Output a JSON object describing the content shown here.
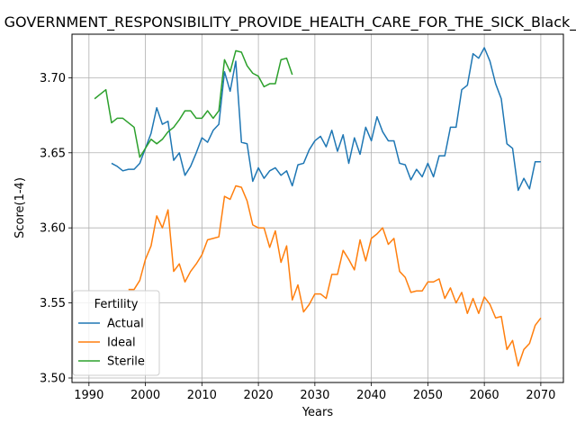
{
  "chart_data": {
    "type": "line",
    "title": "GOVERNMENT_RESPONSIBILITY_PROVIDE_HEALTH_CARE_FOR_THE_SICK_Black_Fertility",
    "xlabel": "Years",
    "ylabel": "Score(1-4)",
    "xlim": [
      1987,
      2074
    ],
    "ylim": [
      3.497,
      3.729
    ],
    "xticks": [
      1990,
      2000,
      2010,
      2020,
      2030,
      2040,
      2050,
      2060,
      2070
    ],
    "yticks": [
      3.5,
      3.55,
      3.6,
      3.65,
      3.7
    ],
    "ytick_labels": [
      "3.50",
      "3.55",
      "3.60",
      "3.65",
      "3.70"
    ],
    "grid": true,
    "legend": {
      "title": "Fertility",
      "position": "lower-left"
    },
    "series": [
      {
        "name": "Actual",
        "color": "#1f77b4",
        "x": [
          1994,
          1995,
          1996,
          1997,
          1998,
          1999,
          2000,
          2001,
          2002,
          2003,
          2004,
          2005,
          2006,
          2007,
          2008,
          2009,
          2010,
          2011,
          2012,
          2013,
          2014,
          2015,
          2016,
          2017,
          2018,
          2019,
          2020,
          2021,
          2022,
          2023,
          2024,
          2025,
          2026,
          2027,
          2028,
          2029,
          2030,
          2031,
          2032,
          2033,
          2034,
          2035,
          2036,
          2037,
          2038,
          2039,
          2040,
          2041,
          2042,
          2043,
          2044,
          2045,
          2046,
          2047,
          2048,
          2049,
          2050,
          2051,
          2052,
          2053,
          2054,
          2055,
          2056,
          2057,
          2058,
          2059,
          2060,
          2061,
          2062,
          2063,
          2064,
          2065,
          2066,
          2067,
          2068,
          2069,
          2070
        ],
        "values": [
          3.643,
          3.641,
          3.638,
          3.639,
          3.639,
          3.643,
          3.653,
          3.663,
          3.68,
          3.669,
          3.671,
          3.645,
          3.65,
          3.635,
          3.641,
          3.65,
          3.66,
          3.657,
          3.665,
          3.669,
          3.704,
          3.691,
          3.711,
          3.657,
          3.656,
          3.631,
          3.64,
          3.633,
          3.638,
          3.64,
          3.635,
          3.638,
          3.628,
          3.642,
          3.643,
          3.652,
          3.658,
          3.661,
          3.654,
          3.665,
          3.651,
          3.662,
          3.643,
          3.66,
          3.649,
          3.667,
          3.658,
          3.674,
          3.664,
          3.658,
          3.658,
          3.643,
          3.642,
          3.632,
          3.639,
          3.634,
          3.643,
          3.634,
          3.648,
          3.648,
          3.667,
          3.667,
          3.692,
          3.695,
          3.716,
          3.713,
          3.72,
          3.711,
          3.696,
          3.686,
          3.656,
          3.653,
          3.625,
          3.633,
          3.626,
          3.644,
          3.644
        ]
      },
      {
        "name": "Ideal",
        "color": "#ff7f0e",
        "x": [
          1997,
          1998,
          1999,
          2000,
          2001,
          2002,
          2003,
          2004,
          2005,
          2006,
          2007,
          2008,
          2009,
          2010,
          2011,
          2012,
          2013,
          2014,
          2015,
          2016,
          2017,
          2018,
          2019,
          2020,
          2021,
          2022,
          2023,
          2024,
          2025,
          2026,
          2027,
          2028,
          2029,
          2030,
          2031,
          2032,
          2033,
          2034,
          2035,
          2036,
          2037,
          2038,
          2039,
          2040,
          2041,
          2042,
          2043,
          2044,
          2045,
          2046,
          2047,
          2048,
          2049,
          2050,
          2051,
          2052,
          2053,
          2054,
          2055,
          2056,
          2057,
          2058,
          2059,
          2060,
          2061,
          2062,
          2063,
          2064,
          2065,
          2066,
          2067,
          2068,
          2069,
          2070
        ],
        "values": [
          3.559,
          3.559,
          3.565,
          3.579,
          3.588,
          3.608,
          3.6,
          3.612,
          3.571,
          3.576,
          3.564,
          3.571,
          3.576,
          3.582,
          3.592,
          3.593,
          3.594,
          3.621,
          3.619,
          3.628,
          3.627,
          3.618,
          3.602,
          3.6,
          3.6,
          3.587,
          3.598,
          3.577,
          3.588,
          3.552,
          3.562,
          3.544,
          3.549,
          3.556,
          3.556,
          3.553,
          3.569,
          3.569,
          3.585,
          3.579,
          3.572,
          3.592,
          3.578,
          3.593,
          3.596,
          3.6,
          3.589,
          3.593,
          3.571,
          3.567,
          3.557,
          3.558,
          3.558,
          3.564,
          3.564,
          3.566,
          3.553,
          3.56,
          3.55,
          3.557,
          3.543,
          3.553,
          3.543,
          3.554,
          3.549,
          3.54,
          3.541,
          3.519,
          3.525,
          3.508,
          3.519,
          3.523,
          3.535,
          3.54
        ]
      },
      {
        "name": "Sterile",
        "color": "#2ca02c",
        "x": [
          1991,
          1992,
          1993,
          1994,
          1995,
          1996,
          1997,
          1998,
          1999,
          2000,
          2001,
          2002,
          2003,
          2004,
          2005,
          2006,
          2007,
          2008,
          2009,
          2010,
          2011,
          2012,
          2013,
          2014,
          2015,
          2016,
          2017,
          2018,
          2019,
          2020,
          2021,
          2022,
          2023,
          2024,
          2025,
          2026
        ],
        "values": [
          3.686,
          3.689,
          3.692,
          3.67,
          3.673,
          3.673,
          3.67,
          3.667,
          3.647,
          3.653,
          3.659,
          3.656,
          3.659,
          3.664,
          3.667,
          3.672,
          3.678,
          3.678,
          3.673,
          3.673,
          3.678,
          3.673,
          3.678,
          3.712,
          3.704,
          3.718,
          3.717,
          3.708,
          3.703,
          3.701,
          3.694,
          3.696,
          3.696,
          3.712,
          3.713,
          3.702
        ]
      }
    ]
  }
}
